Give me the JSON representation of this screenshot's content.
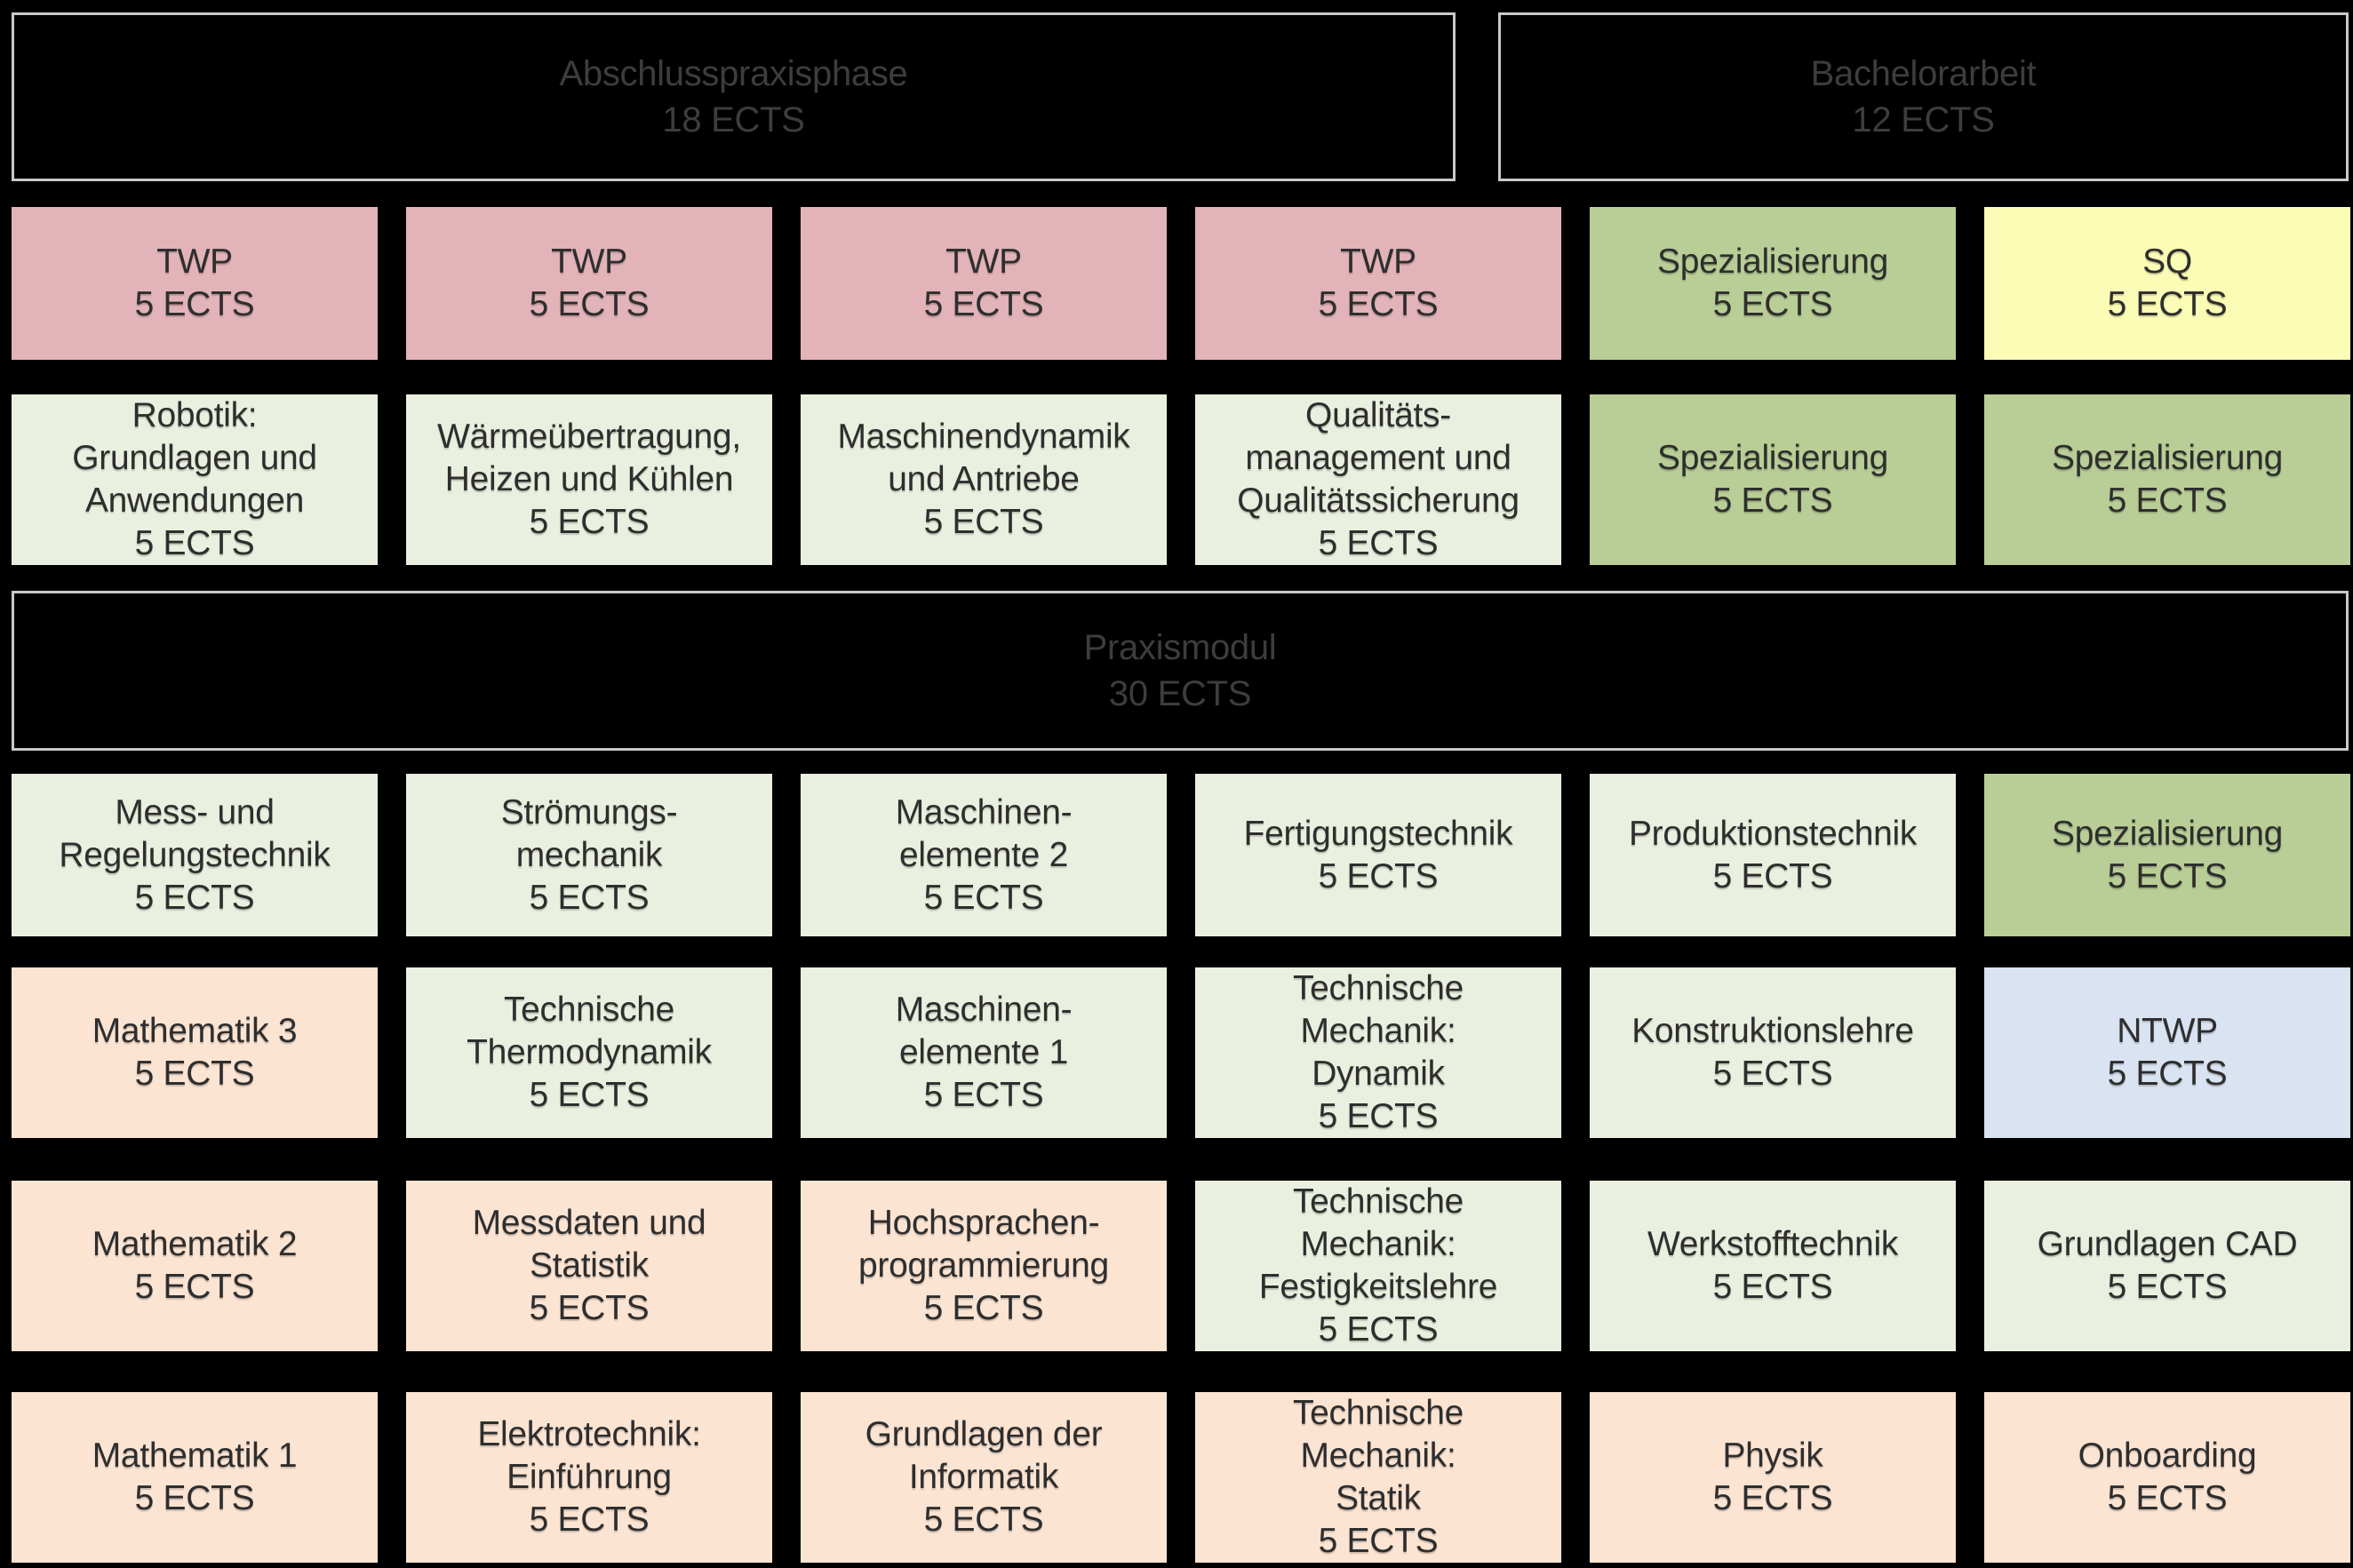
{
  "palette": {
    "background": "#000000",
    "header_bg": "#000000",
    "header_border": "#c9c9c9",
    "header_text": "#3d3d3d",
    "box_text": "#2e2e2e",
    "pink": "#e2b3b9",
    "pale_green": "#eaf0df",
    "green": "#b9ce96",
    "yellow": "#fbfcb5",
    "peach": "#fce4d3",
    "blue": "#d9e3f1"
  },
  "phases": [
    {
      "id": "abschlusspraxisphase",
      "title": "Abschlusspraxisphase",
      "ects": "18 ECTS"
    },
    {
      "id": "bachelorarbeit",
      "title": "Bachelorarbeit",
      "ects": "12 ECTS"
    },
    {
      "id": "praxismodul",
      "title": "Praxismodul",
      "ects": "30 ECTS"
    }
  ],
  "grid": {
    "rows": [
      {
        "cells": [
          {
            "lines": [
              "TWP"
            ],
            "ects": "5 ECTS",
            "color": "pink"
          },
          {
            "lines": [
              "TWP"
            ],
            "ects": "5 ECTS",
            "color": "pink"
          },
          {
            "lines": [
              "TWP"
            ],
            "ects": "5 ECTS",
            "color": "pink"
          },
          {
            "lines": [
              "TWP"
            ],
            "ects": "5 ECTS",
            "color": "pink"
          },
          {
            "lines": [
              "Spezialisierung"
            ],
            "ects": "5 ECTS",
            "color": "green"
          },
          {
            "lines": [
              "SQ"
            ],
            "ects": "5 ECTS",
            "color": "yellow"
          }
        ]
      },
      {
        "cells": [
          {
            "lines": [
              "Robotik:",
              "Grundlagen und",
              "Anwendungen"
            ],
            "ects": "5 ECTS",
            "color": "pale_green"
          },
          {
            "lines": [
              "Wärmeübertragung,",
              "Heizen und Kühlen"
            ],
            "ects": "5 ECTS",
            "color": "pale_green"
          },
          {
            "lines": [
              "Maschinendynamik",
              "und Antriebe"
            ],
            "ects": "5 ECTS",
            "color": "pale_green"
          },
          {
            "lines": [
              "Qualitäts-",
              "management und",
              "Qualitätssicherung"
            ],
            "ects": "5 ECTS",
            "color": "pale_green"
          },
          {
            "lines": [
              "Spezialisierung"
            ],
            "ects": "5 ECTS",
            "color": "green"
          },
          {
            "lines": [
              "Spezialisierung"
            ],
            "ects": "5 ECTS",
            "color": "green"
          }
        ]
      },
      {
        "cells": [
          {
            "lines": [
              "Mess- und",
              "Regelungstechnik"
            ],
            "ects": "5 ECTS",
            "color": "pale_green"
          },
          {
            "lines": [
              "Strömungs-",
              "mechanik"
            ],
            "ects": "5 ECTS",
            "color": "pale_green"
          },
          {
            "lines": [
              "Maschinen-",
              "elemente 2"
            ],
            "ects": "5 ECTS",
            "color": "pale_green"
          },
          {
            "lines": [
              "Fertigungstechnik"
            ],
            "ects": "5 ECTS",
            "color": "pale_green"
          },
          {
            "lines": [
              "Produktionstechnik"
            ],
            "ects": "5 ECTS",
            "color": "pale_green"
          },
          {
            "lines": [
              "Spezialisierung"
            ],
            "ects": "5 ECTS",
            "color": "green"
          }
        ]
      },
      {
        "cells": [
          {
            "lines": [
              "Mathematik 3"
            ],
            "ects": "5 ECTS",
            "color": "peach"
          },
          {
            "lines": [
              "Technische",
              "Thermodynamik"
            ],
            "ects": "5 ECTS",
            "color": "pale_green"
          },
          {
            "lines": [
              "Maschinen-",
              "elemente 1"
            ],
            "ects": "5 ECTS",
            "color": "pale_green"
          },
          {
            "lines": [
              "Technische",
              "Mechanik:",
              "Dynamik"
            ],
            "ects": "5 ECTS",
            "color": "pale_green"
          },
          {
            "lines": [
              "Konstruktionslehre"
            ],
            "ects": "5 ECTS",
            "color": "pale_green"
          },
          {
            "lines": [
              "NTWP"
            ],
            "ects": "5 ECTS",
            "color": "blue"
          }
        ]
      },
      {
        "cells": [
          {
            "lines": [
              "Mathematik 2"
            ],
            "ects": "5 ECTS",
            "color": "peach"
          },
          {
            "lines": [
              "Messdaten und",
              "Statistik"
            ],
            "ects": "5 ECTS",
            "color": "peach"
          },
          {
            "lines": [
              "Hochsprachen-",
              "programmierung"
            ],
            "ects": "5 ECTS",
            "color": "peach"
          },
          {
            "lines": [
              "Technische",
              "Mechanik:",
              "Festigkeitslehre"
            ],
            "ects": "5 ECTS",
            "color": "pale_green"
          },
          {
            "lines": [
              "Werkstofftechnik"
            ],
            "ects": "5 ECTS",
            "color": "pale_green"
          },
          {
            "lines": [
              "Grundlagen CAD"
            ],
            "ects": "5 ECTS",
            "color": "pale_green"
          }
        ]
      },
      {
        "cells": [
          {
            "lines": [
              "Mathematik 1"
            ],
            "ects": "5 ECTS",
            "color": "peach"
          },
          {
            "lines": [
              "Elektrotechnik:",
              "Einführung"
            ],
            "ects": "5 ECTS",
            "color": "peach"
          },
          {
            "lines": [
              "Grundlagen der",
              "Informatik"
            ],
            "ects": "5 ECTS",
            "color": "peach"
          },
          {
            "lines": [
              "Technische",
              "Mechanik:",
              "Statik"
            ],
            "ects": "5 ECTS",
            "color": "peach"
          },
          {
            "lines": [
              "Physik"
            ],
            "ects": "5 ECTS",
            "color": "peach"
          },
          {
            "lines": [
              "Onboarding"
            ],
            "ects": "5 ECTS",
            "color": "peach"
          }
        ]
      }
    ]
  }
}
